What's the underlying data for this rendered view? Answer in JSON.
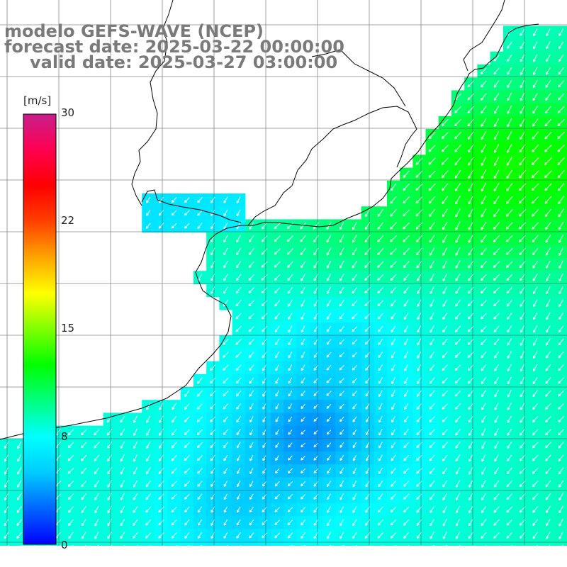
{
  "header": {
    "model": "modelo GEFS-WAVE (NCEP)",
    "forecast": "forecast date: 2025-03-22 00:00:00",
    "valid": "valid date: 2025-03-27 03:00:00"
  },
  "colorbar": {
    "unit": "[m/s]",
    "ticks": [
      "30",
      "22",
      "15",
      "8",
      "0"
    ],
    "tick_values": [
      30,
      22,
      15,
      8,
      0
    ],
    "min": 0,
    "max": 30,
    "stops": [
      "#0000ff",
      "#0066ff",
      "#00ccff",
      "#00ffff",
      "#00ff80",
      "#00ff00",
      "#80ff00",
      "#ffff00",
      "#ffa500",
      "#ff4000",
      "#ff0000",
      "#ff0050",
      "#c81e8c"
    ]
  },
  "map": {
    "field": "wind speed with direction arrows",
    "wind_direction": "towards south-west",
    "speed_range_ms": [
      2,
      12
    ]
  }
}
